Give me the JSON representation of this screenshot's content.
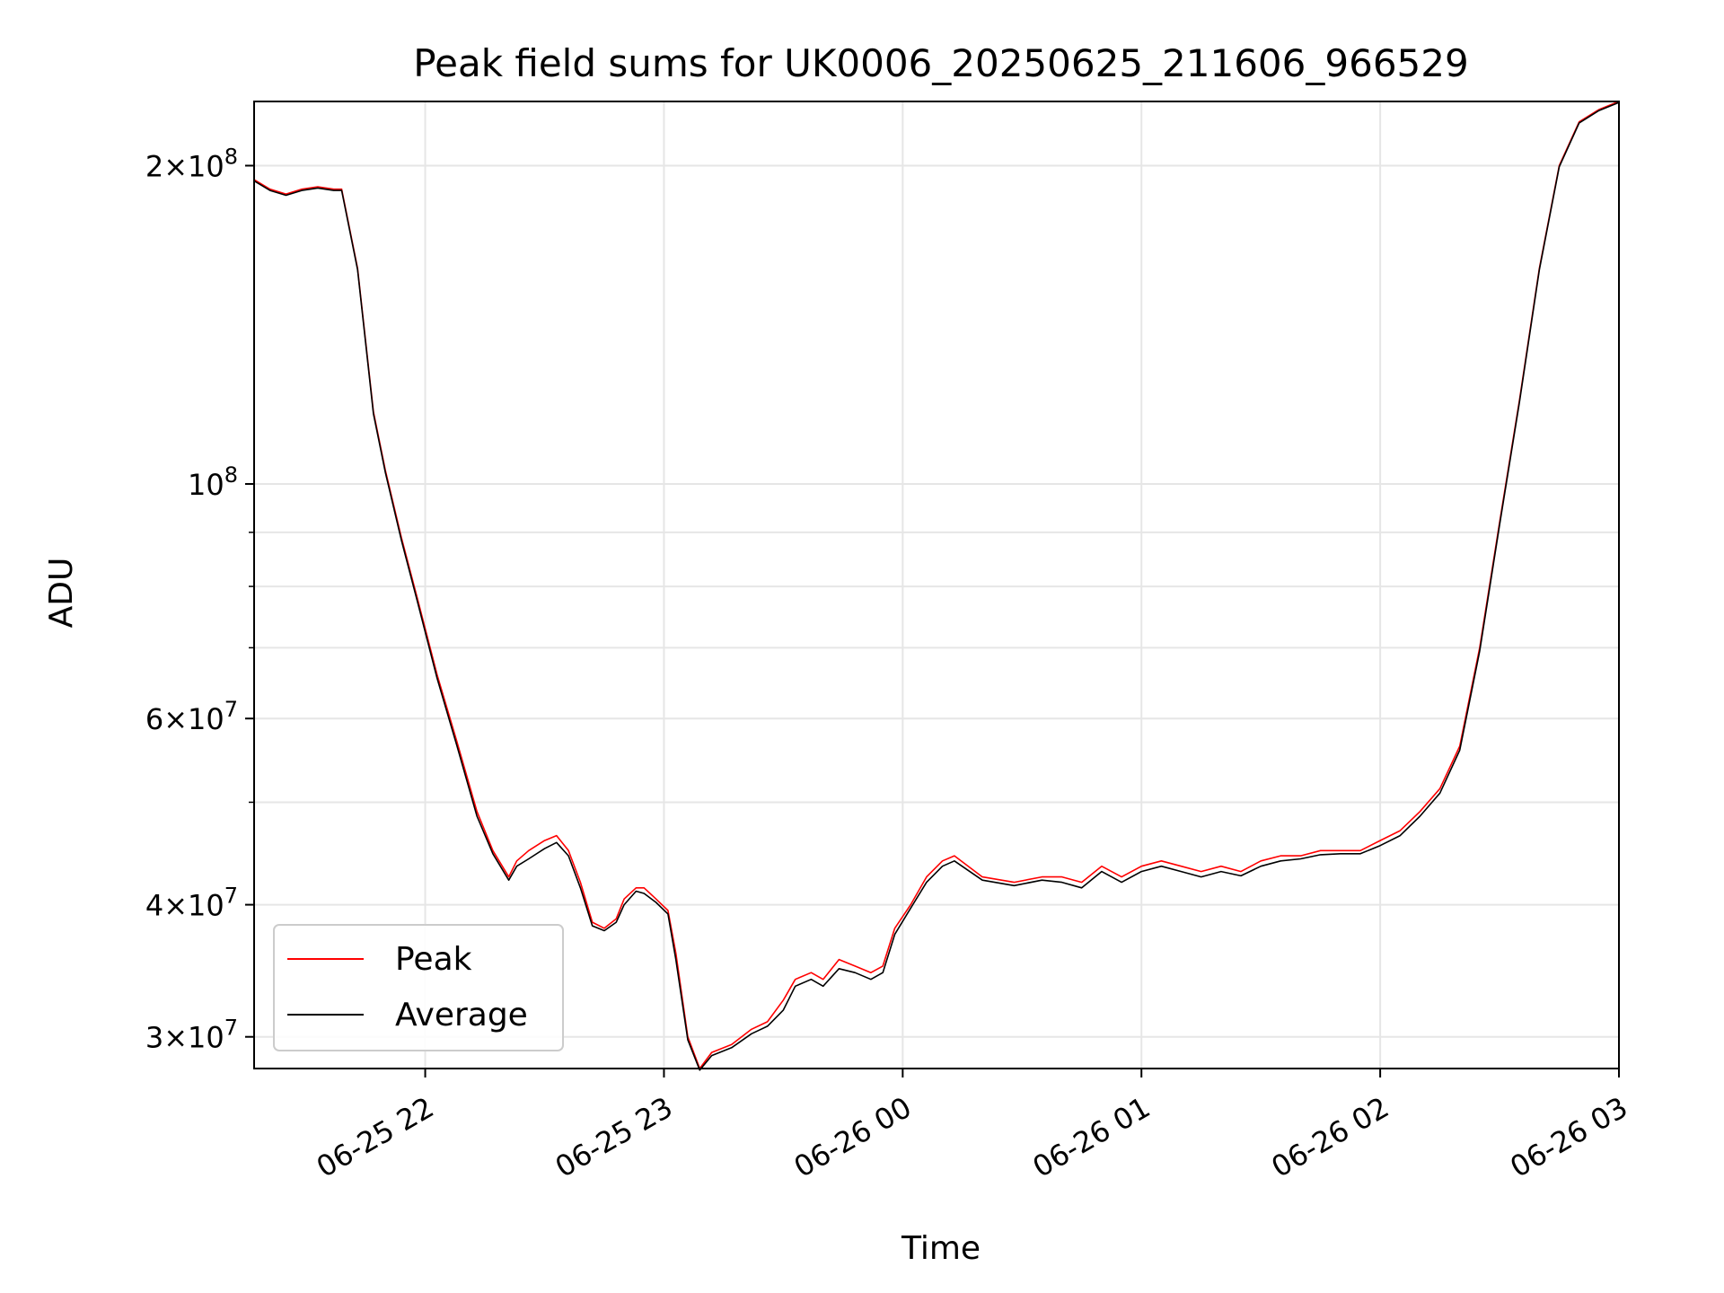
{
  "chart_data": {
    "type": "line",
    "title": "Peak field sums for UK0006_20250625_211606_966529",
    "xlabel": "Time",
    "ylabel": "ADU",
    "yscale": "log",
    "ylim": [
      28000000,
      230000000
    ],
    "xlim": [
      "2025-06-25T21:17",
      "2025-06-26T03:00"
    ],
    "grid": true,
    "legend_position": "lower-left",
    "x_ticks": [
      {
        "t": "2025-06-25T22:00",
        "label": "06-25 22"
      },
      {
        "t": "2025-06-25T23:00",
        "label": "06-25 23"
      },
      {
        "t": "2025-06-26T00:00",
        "label": "06-26 00"
      },
      {
        "t": "2025-06-26T01:00",
        "label": "06-26 01"
      },
      {
        "t": "2025-06-26T02:00",
        "label": "06-26 02"
      },
      {
        "t": "2025-06-26T03:00",
        "label": "06-26 03"
      }
    ],
    "y_ticks": [
      {
        "value": 30000000,
        "mant": "3",
        "exp": "7"
      },
      {
        "value": 40000000,
        "mant": "4",
        "exp": "7"
      },
      {
        "value": 60000000,
        "mant": "6",
        "exp": "7"
      },
      {
        "value": 100000000,
        "mant": "",
        "exp": "8"
      },
      {
        "value": 200000000,
        "mant": "2",
        "exp": "8"
      }
    ],
    "y_minor_ticks": [
      50000000,
      70000000,
      80000000,
      90000000
    ],
    "series": [
      {
        "name": "Peak",
        "color": "#ff0000",
        "x": [
          "2025-06-25T21:17",
          "2025-06-25T21:21",
          "2025-06-25T21:25",
          "2025-06-25T21:29",
          "2025-06-25T21:33",
          "2025-06-25T21:37",
          "2025-06-25T21:39",
          "2025-06-25T21:43",
          "2025-06-25T21:47",
          "2025-06-25T21:50",
          "2025-06-25T21:54",
          "2025-06-25T21:58",
          "2025-06-25T22:03",
          "2025-06-25T22:08",
          "2025-06-25T22:13",
          "2025-06-25T22:17",
          "2025-06-25T22:21",
          "2025-06-25T22:23",
          "2025-06-25T22:26",
          "2025-06-25T22:30",
          "2025-06-25T22:33",
          "2025-06-25T22:36",
          "2025-06-25T22:39",
          "2025-06-25T22:42",
          "2025-06-25T22:45",
          "2025-06-25T22:48",
          "2025-06-25T22:50",
          "2025-06-25T22:53",
          "2025-06-25T22:55",
          "2025-06-25T22:58",
          "2025-06-25T23:01",
          "2025-06-25T23:03",
          "2025-06-25T23:06",
          "2025-06-25T23:09",
          "2025-06-25T23:12",
          "2025-06-25T23:17",
          "2025-06-25T23:22",
          "2025-06-25T23:26",
          "2025-06-25T23:30",
          "2025-06-25T23:33",
          "2025-06-25T23:37",
          "2025-06-25T23:40",
          "2025-06-25T23:44",
          "2025-06-25T23:48",
          "2025-06-25T23:52",
          "2025-06-25T23:55",
          "2025-06-25T23:58",
          "2025-06-26T00:02",
          "2025-06-26T00:06",
          "2025-06-26T00:10",
          "2025-06-26T00:13",
          "2025-06-26T00:20",
          "2025-06-26T00:28",
          "2025-06-26T00:35",
          "2025-06-26T00:40",
          "2025-06-26T00:45",
          "2025-06-26T00:50",
          "2025-06-26T00:55",
          "2025-06-26T01:00",
          "2025-06-26T01:05",
          "2025-06-26T01:10",
          "2025-06-26T01:15",
          "2025-06-26T01:20",
          "2025-06-26T01:25",
          "2025-06-26T01:30",
          "2025-06-26T01:35",
          "2025-06-26T01:40",
          "2025-06-26T01:45",
          "2025-06-26T01:50",
          "2025-06-26T01:55",
          "2025-06-26T02:00",
          "2025-06-26T02:05",
          "2025-06-26T02:10",
          "2025-06-26T02:15",
          "2025-06-26T02:20",
          "2025-06-26T02:25",
          "2025-06-26T02:30",
          "2025-06-26T02:35",
          "2025-06-26T02:40",
          "2025-06-26T02:45",
          "2025-06-26T02:50",
          "2025-06-26T02:55",
          "2025-06-26T03:00"
        ],
        "y": [
          194000000,
          190000000,
          188000000,
          190000000,
          191000000,
          190000000,
          190000000,
          160000000,
          117000000,
          103000000,
          89000000,
          78000000,
          66000000,
          57000000,
          49000000,
          45000000,
          42500000,
          44000000,
          45000000,
          46000000,
          46500000,
          45000000,
          42000000,
          38500000,
          38000000,
          38800000,
          40500000,
          41500000,
          41500000,
          40500000,
          39500000,
          36000000,
          30000000,
          28000000,
          29000000,
          29500000,
          30500000,
          31000000,
          32500000,
          34000000,
          34500000,
          34000000,
          35500000,
          35000000,
          34500000,
          35000000,
          38000000,
          40000000,
          42500000,
          44000000,
          44500000,
          42500000,
          42000000,
          42500000,
          42500000,
          42000000,
          43500000,
          42500000,
          43500000,
          44000000,
          43500000,
          43000000,
          43500000,
          43000000,
          44000000,
          44500000,
          44500000,
          45000000,
          45000000,
          45000000,
          46000000,
          47000000,
          49000000,
          51500000,
          56500000,
          70000000,
          92000000,
          120000000,
          160000000,
          200000000,
          220000000,
          226000000,
          230000000
        ]
      },
      {
        "name": "Average",
        "color": "#000000",
        "x": [
          "2025-06-25T21:17",
          "2025-06-25T21:21",
          "2025-06-25T21:25",
          "2025-06-25T21:29",
          "2025-06-25T21:33",
          "2025-06-25T21:37",
          "2025-06-25T21:39",
          "2025-06-25T21:43",
          "2025-06-25T21:47",
          "2025-06-25T21:50",
          "2025-06-25T21:54",
          "2025-06-25T21:58",
          "2025-06-25T22:03",
          "2025-06-25T22:08",
          "2025-06-25T22:13",
          "2025-06-25T22:17",
          "2025-06-25T22:21",
          "2025-06-25T22:23",
          "2025-06-25T22:26",
          "2025-06-25T22:30",
          "2025-06-25T22:33",
          "2025-06-25T22:36",
          "2025-06-25T22:39",
          "2025-06-25T22:42",
          "2025-06-25T22:45",
          "2025-06-25T22:48",
          "2025-06-25T22:50",
          "2025-06-25T22:53",
          "2025-06-25T22:55",
          "2025-06-25T22:58",
          "2025-06-25T23:01",
          "2025-06-25T23:03",
          "2025-06-25T23:06",
          "2025-06-25T23:09",
          "2025-06-25T23:12",
          "2025-06-25T23:17",
          "2025-06-25T23:22",
          "2025-06-25T23:26",
          "2025-06-25T23:30",
          "2025-06-25T23:33",
          "2025-06-25T23:37",
          "2025-06-25T23:40",
          "2025-06-25T23:44",
          "2025-06-25T23:48",
          "2025-06-25T23:52",
          "2025-06-25T23:55",
          "2025-06-25T23:58",
          "2025-06-26T00:02",
          "2025-06-26T00:06",
          "2025-06-26T00:10",
          "2025-06-26T00:13",
          "2025-06-26T00:20",
          "2025-06-26T00:28",
          "2025-06-26T00:35",
          "2025-06-26T00:40",
          "2025-06-26T00:45",
          "2025-06-26T00:50",
          "2025-06-26T00:55",
          "2025-06-26T01:00",
          "2025-06-26T01:05",
          "2025-06-26T01:10",
          "2025-06-26T01:15",
          "2025-06-26T01:20",
          "2025-06-26T01:25",
          "2025-06-26T01:30",
          "2025-06-26T01:35",
          "2025-06-26T01:40",
          "2025-06-26T01:45",
          "2025-06-26T01:50",
          "2025-06-26T01:55",
          "2025-06-26T02:00",
          "2025-06-26T02:05",
          "2025-06-26T02:10",
          "2025-06-26T02:15",
          "2025-06-26T02:20",
          "2025-06-26T02:25",
          "2025-06-26T02:30",
          "2025-06-26T02:35",
          "2025-06-26T02:40",
          "2025-06-26T02:45",
          "2025-06-26T02:50",
          "2025-06-26T02:55",
          "2025-06-26T03:00"
        ],
        "y": [
          193500000,
          189500000,
          187500000,
          189500000,
          190500000,
          189500000,
          189500000,
          159500000,
          116500000,
          102500000,
          88500000,
          77500000,
          65500000,
          56500000,
          48500000,
          44700000,
          42200000,
          43500000,
          44200000,
          45200000,
          45800000,
          44500000,
          41500000,
          38200000,
          37800000,
          38500000,
          40000000,
          41200000,
          41000000,
          40200000,
          39200000,
          35500000,
          29800000,
          27900000,
          28800000,
          29300000,
          30200000,
          30700000,
          31800000,
          33500000,
          34000000,
          33500000,
          34800000,
          34500000,
          34000000,
          34500000,
          37500000,
          39700000,
          42000000,
          43500000,
          44000000,
          42200000,
          41700000,
          42200000,
          42000000,
          41500000,
          43000000,
          42000000,
          43000000,
          43500000,
          43000000,
          42500000,
          43000000,
          42600000,
          43500000,
          44000000,
          44200000,
          44600000,
          44700000,
          44700000,
          45500000,
          46500000,
          48500000,
          51000000,
          56000000,
          69500000,
          91500000,
          119500000,
          159500000,
          199500000,
          219500000,
          225500000,
          229500000
        ]
      }
    ]
  }
}
